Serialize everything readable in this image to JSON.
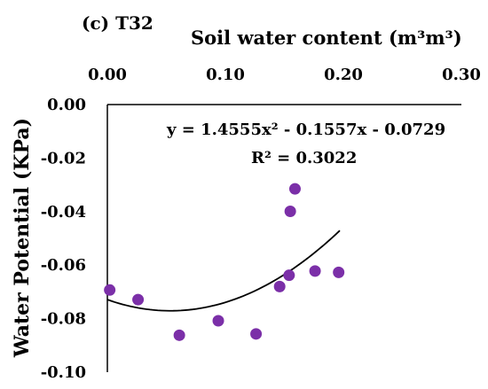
{
  "chart_data": {
    "type": "scatter",
    "panel_label": "(c) T32",
    "xlabel": "Soil water content (m³m³)",
    "ylabel": "Water Potential (KPa)",
    "xlim": [
      0,
      0.3
    ],
    "ylim": [
      -0.1,
      0.0
    ],
    "x_ticks": [
      "0.00",
      "0.10",
      "0.20",
      "0.30"
    ],
    "y_ticks": [
      "0.00",
      "-0.02",
      "-0.04",
      "-0.06",
      "-0.08",
      "-0.10"
    ],
    "x_axis_position": "top",
    "grid": false,
    "marker_color": "#7b2fa8",
    "trend_color": "#000000",
    "points": [
      {
        "x": 0.002,
        "y": -0.0693
      },
      {
        "x": 0.026,
        "y": -0.0729
      },
      {
        "x": 0.061,
        "y": -0.0862
      },
      {
        "x": 0.094,
        "y": -0.0808
      },
      {
        "x": 0.126,
        "y": -0.0857
      },
      {
        "x": 0.146,
        "y": -0.068
      },
      {
        "x": 0.154,
        "y": -0.0638
      },
      {
        "x": 0.155,
        "y": -0.0399
      },
      {
        "x": 0.159,
        "y": -0.0315
      },
      {
        "x": 0.176,
        "y": -0.0622
      },
      {
        "x": 0.196,
        "y": -0.0627
      }
    ],
    "trendline": {
      "type": "polynomial",
      "coefficients": [
        1.4555,
        -0.1557,
        -0.0729
      ],
      "x_range": [
        0.0,
        0.197
      ]
    },
    "equation_text": "y = 1.4555x² - 0.1557x - 0.0729",
    "r2_text": "R² = 0.3022"
  }
}
